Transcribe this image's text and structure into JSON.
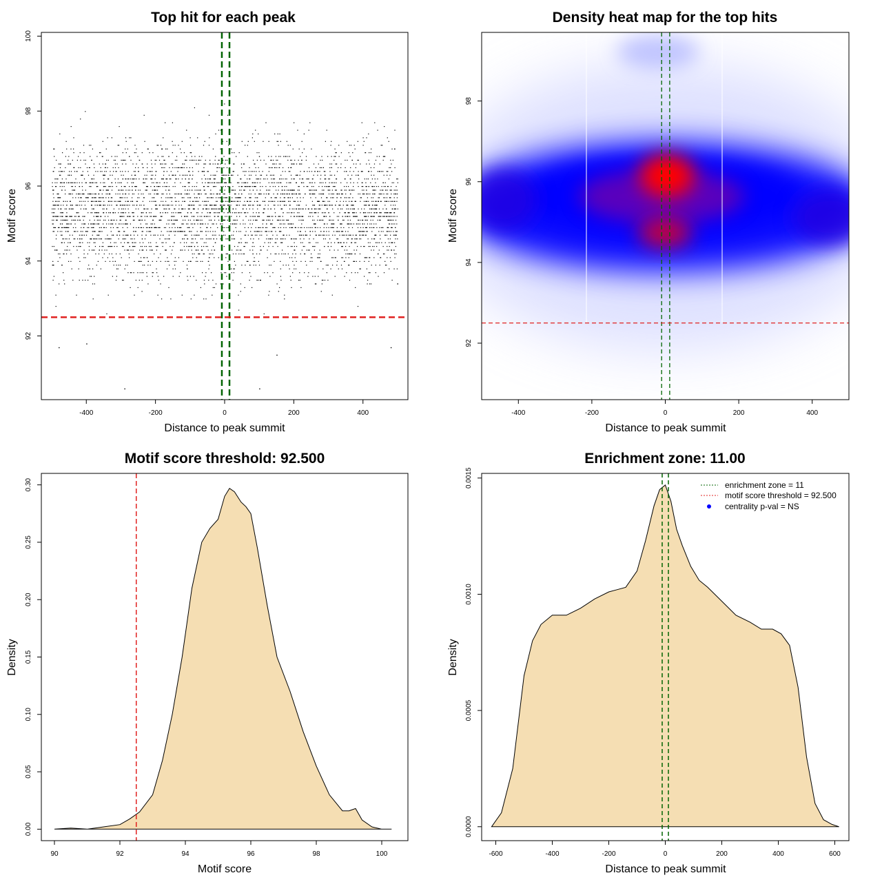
{
  "chart_data": [
    {
      "type": "scatter",
      "title": "Top hit for each peak",
      "xlabel": "Distance to peak summit",
      "ylabel": "Motif score",
      "xlim": [
        -530,
        530
      ],
      "ylim": [
        90.3,
        100.1
      ],
      "xticks": [
        -400,
        -200,
        0,
        200,
        400
      ],
      "yticks": [
        92,
        94,
        96,
        98,
        100
      ],
      "reference_lines": {
        "vertical": [
          -8,
          14
        ],
        "vertical_color": "#006400",
        "horizontal": [
          92.5
        ],
        "horizontal_color": "#e0201f"
      },
      "point_summary": {
        "x_range": [
          -500,
          500
        ],
        "y_range": [
          90.6,
          99.7
        ],
        "y_center": 95.4,
        "score_step": 0.1,
        "note_points": [
          [
            -290,
            90.6
          ],
          [
            100,
            90.6
          ],
          [
            150,
            91.5
          ],
          [
            -480,
            91.7
          ],
          [
            480,
            91.7
          ],
          [
            -400,
            91.8
          ]
        ]
      }
    },
    {
      "type": "heatmap",
      "title": "Density heat map for the top hits",
      "xlabel": "Distance to peak summit",
      "ylabel": "Motif score",
      "xlim": [
        -500,
        500
      ],
      "ylim": [
        90.6,
        99.7
      ],
      "xticks": [
        -400,
        -200,
        0,
        200,
        400
      ],
      "yticks": [
        92,
        94,
        96,
        98
      ],
      "colors": [
        "#ffffff",
        "#0000ff",
        "#ff0000"
      ],
      "reference_lines": {
        "vertical": [
          -10,
          12
        ],
        "vertical_color": "#006400",
        "horizontal": [
          92.5
        ],
        "horizontal_color": "#e0201f"
      },
      "density_peaks": [
        {
          "x": 5,
          "y": 96.1,
          "level": "high"
        },
        {
          "x": 0,
          "y": 94.7,
          "level": "high"
        },
        {
          "x": -380,
          "y": 95.6,
          "level": "medium"
        },
        {
          "x": 420,
          "y": 95.2,
          "level": "medium"
        }
      ]
    },
    {
      "type": "area",
      "title": "Motif score threshold: 92.500",
      "xlabel": "Motif score",
      "ylabel": "Density",
      "xlim": [
        89.6,
        100.8
      ],
      "ylim": [
        -0.01,
        0.31
      ],
      "xticks": [
        90,
        92,
        94,
        96,
        98,
        100
      ],
      "yticks": [
        0.0,
        0.05,
        0.1,
        0.15,
        0.2,
        0.25,
        0.3
      ],
      "fill_color": "#f5deb3",
      "threshold_line": 92.5,
      "threshold_color": "#e0201f",
      "x": [
        90.0,
        90.5,
        91.0,
        91.5,
        92.0,
        92.3,
        92.6,
        93.0,
        93.3,
        93.6,
        93.9,
        94.2,
        94.5,
        94.75,
        95.0,
        95.2,
        95.35,
        95.5,
        95.7,
        95.85,
        96.0,
        96.2,
        96.5,
        96.8,
        97.2,
        97.6,
        98.0,
        98.4,
        98.8,
        99.0,
        99.2,
        99.4,
        99.7,
        100.0,
        100.3
      ],
      "y": [
        0.0,
        0.001,
        0.0,
        0.002,
        0.004,
        0.009,
        0.015,
        0.03,
        0.06,
        0.1,
        0.15,
        0.21,
        0.25,
        0.262,
        0.27,
        0.29,
        0.297,
        0.294,
        0.285,
        0.281,
        0.275,
        0.245,
        0.195,
        0.15,
        0.12,
        0.085,
        0.055,
        0.03,
        0.016,
        0.016,
        0.018,
        0.008,
        0.002,
        0.0,
        0.0
      ]
    },
    {
      "type": "area",
      "title": "Enrichment zone: 11.00",
      "xlabel": "Distance to peak summit",
      "ylabel": "Density",
      "xlim": [
        -650,
        650
      ],
      "ylim": [
        -6e-05,
        0.00152
      ],
      "xticks": [
        -600,
        -400,
        -200,
        0,
        200,
        400,
        600
      ],
      "yticks": [
        0.0,
        0.0005,
        0.001,
        0.0015
      ],
      "ytick_labels": [
        "0.0000",
        "0.0005",
        "0.0010",
        "0.0015"
      ],
      "fill_color": "#f5deb3",
      "enrichment_lines": [
        -11,
        11
      ],
      "enrichment_color": "#006400",
      "x": [
        -615,
        -580,
        -540,
        -500,
        -470,
        -440,
        -400,
        -350,
        -300,
        -250,
        -200,
        -170,
        -140,
        -100,
        -70,
        -40,
        -20,
        0,
        20,
        40,
        60,
        90,
        120,
        150,
        200,
        250,
        300,
        340,
        380,
        410,
        440,
        470,
        500,
        530,
        560,
        590,
        615
      ],
      "y": [
        0.0,
        6e-05,
        0.00025,
        0.00065,
        0.0008,
        0.00087,
        0.00091,
        0.00091,
        0.00094,
        0.00098,
        0.00101,
        0.00102,
        0.00103,
        0.0011,
        0.00123,
        0.00138,
        0.00145,
        0.00147,
        0.0014,
        0.00128,
        0.00121,
        0.00112,
        0.00106,
        0.00103,
        0.00097,
        0.00091,
        0.00088,
        0.00085,
        0.00085,
        0.00083,
        0.00078,
        0.0006,
        0.0003,
        0.0001,
        3e-05,
        1e-05,
        0.0
      ],
      "legend": {
        "position": "top-right",
        "entries": [
          {
            "label": "enrichment zone = 11",
            "color": "#006400",
            "symbol": "dotted-line"
          },
          {
            "label": "motif score threshold = 92.500",
            "color": "#e0201f",
            "symbol": "dotted-line"
          },
          {
            "label": "centrality p-val = NS",
            "color": "#0000ff",
            "symbol": "dot"
          }
        ]
      }
    }
  ]
}
